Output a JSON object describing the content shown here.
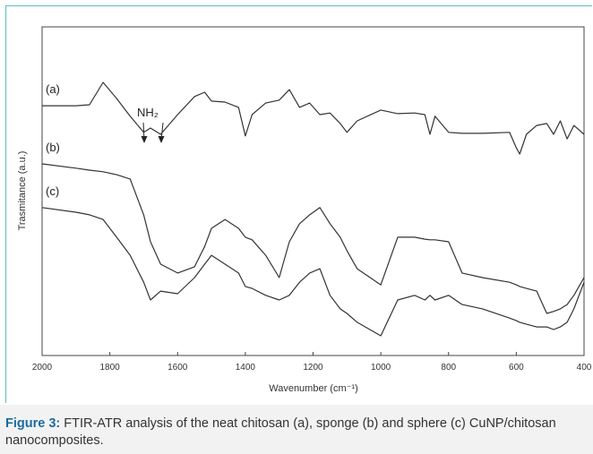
{
  "chart_data": {
    "type": "line",
    "xlabel": "Wavenumber (cm⁻¹)",
    "ylabel": "Trasmitance (a.u.)",
    "annotation": "NH₂",
    "caption_label": "Figure 3:",
    "caption_text": "FTIR-ATR analysis of the neat chitosan (a), sponge (b) and sphere (c) CuNP/chitosan nanocomposites.",
    "x": [
      2000,
      1900,
      1860,
      1820,
      1780,
      1740,
      1700,
      1680,
      1650,
      1600,
      1550,
      1520,
      1500,
      1460,
      1420,
      1400,
      1380,
      1340,
      1300,
      1270,
      1240,
      1210,
      1180,
      1150,
      1120,
      1100,
      1070,
      1000,
      950,
      900,
      870,
      855,
      840,
      800,
      760,
      700,
      620,
      600,
      590,
      570,
      540,
      510,
      490,
      470,
      450,
      430,
      400
    ],
    "xlim": [
      2000,
      400
    ],
    "xticks": [
      2000,
      1800,
      1600,
      1400,
      1200,
      1000,
      800,
      600,
      400
    ],
    "ylim": [
      0,
      100
    ],
    "series": [
      {
        "name": "(a)",
        "color": "#333333",
        "values": [
          76.0,
          76.0,
          76.3,
          83.1,
          78.2,
          72.8,
          67.9,
          69.2,
          67.3,
          73.3,
          78.8,
          80.1,
          77.4,
          77.1,
          75.5,
          66.8,
          73.3,
          76.8,
          77.7,
          80.9,
          75.5,
          76.8,
          73.3,
          73.8,
          70.6,
          67.9,
          71.4,
          74.7,
          73.6,
          73.8,
          73.3,
          67.3,
          72.8,
          67.9,
          67.6,
          67.6,
          67.9,
          63.2,
          61.3,
          67.3,
          70.0,
          70.6,
          67.3,
          71.4,
          65.9,
          70.0,
          67.3
        ]
      },
      {
        "name": "(b)",
        "color": "#333333",
        "values": [
          58.3,
          57.0,
          56.4,
          55.9,
          55.0,
          53.7,
          42.8,
          34.6,
          27.8,
          25.1,
          27.0,
          33.2,
          38.7,
          41.4,
          38.7,
          36.0,
          35.2,
          30.5,
          23.7,
          34.6,
          40.1,
          42.8,
          45.0,
          40.1,
          36.0,
          31.9,
          26.4,
          21.5,
          36.0,
          36.0,
          35.4,
          35.2,
          35.2,
          34.6,
          25.1,
          23.7,
          22.3,
          21.5,
          21.0,
          20.4,
          19.6,
          12.8,
          13.4,
          14.2,
          15.5,
          18.3,
          23.7
        ]
      },
      {
        "name": "(c)",
        "color": "#333333",
        "values": [
          45.0,
          43.6,
          42.8,
          41.4,
          36.0,
          30.5,
          22.3,
          16.9,
          19.6,
          18.8,
          23.7,
          27.8,
          30.5,
          27.8,
          25.1,
          21.0,
          20.4,
          18.3,
          16.9,
          18.3,
          22.3,
          25.1,
          26.4,
          18.3,
          14.2,
          12.8,
          10.1,
          6.0,
          16.9,
          18.3,
          16.9,
          18.3,
          16.9,
          18.3,
          15.5,
          14.2,
          11.4,
          10.6,
          10.1,
          9.5,
          8.7,
          8.7,
          7.9,
          8.7,
          10.1,
          14.2,
          22.3
        ]
      }
    ]
  }
}
